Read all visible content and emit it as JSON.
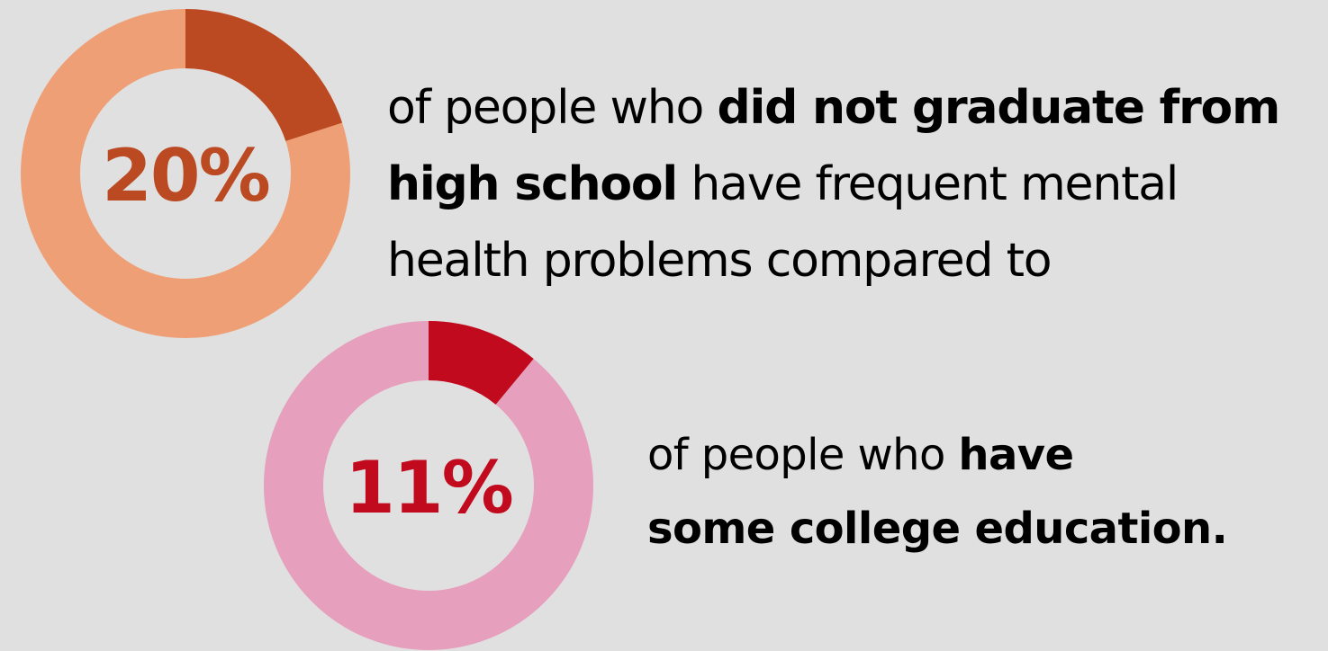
{
  "chart_data": [
    {
      "type": "donut",
      "value": 20,
      "center_label": "20%",
      "colors": {
        "value": "#bb4a22",
        "remainder": "#ee9f75"
      },
      "caption": {
        "line1_normal": "of people who ",
        "line1_bold": "did not graduate from",
        "line2_bold": "high school",
        "line2_normal": " have frequent mental",
        "line3_normal": "health problems compared to"
      }
    },
    {
      "type": "donut",
      "value": 11,
      "center_label": "11%",
      "colors": {
        "value": "#c10a1e",
        "remainder": "#e69fbc"
      },
      "caption": {
        "line1_normal": "of people who ",
        "line1_bold": "have",
        "line2_bold": "some college education."
      }
    }
  ],
  "background_color": "#e0e0e0"
}
